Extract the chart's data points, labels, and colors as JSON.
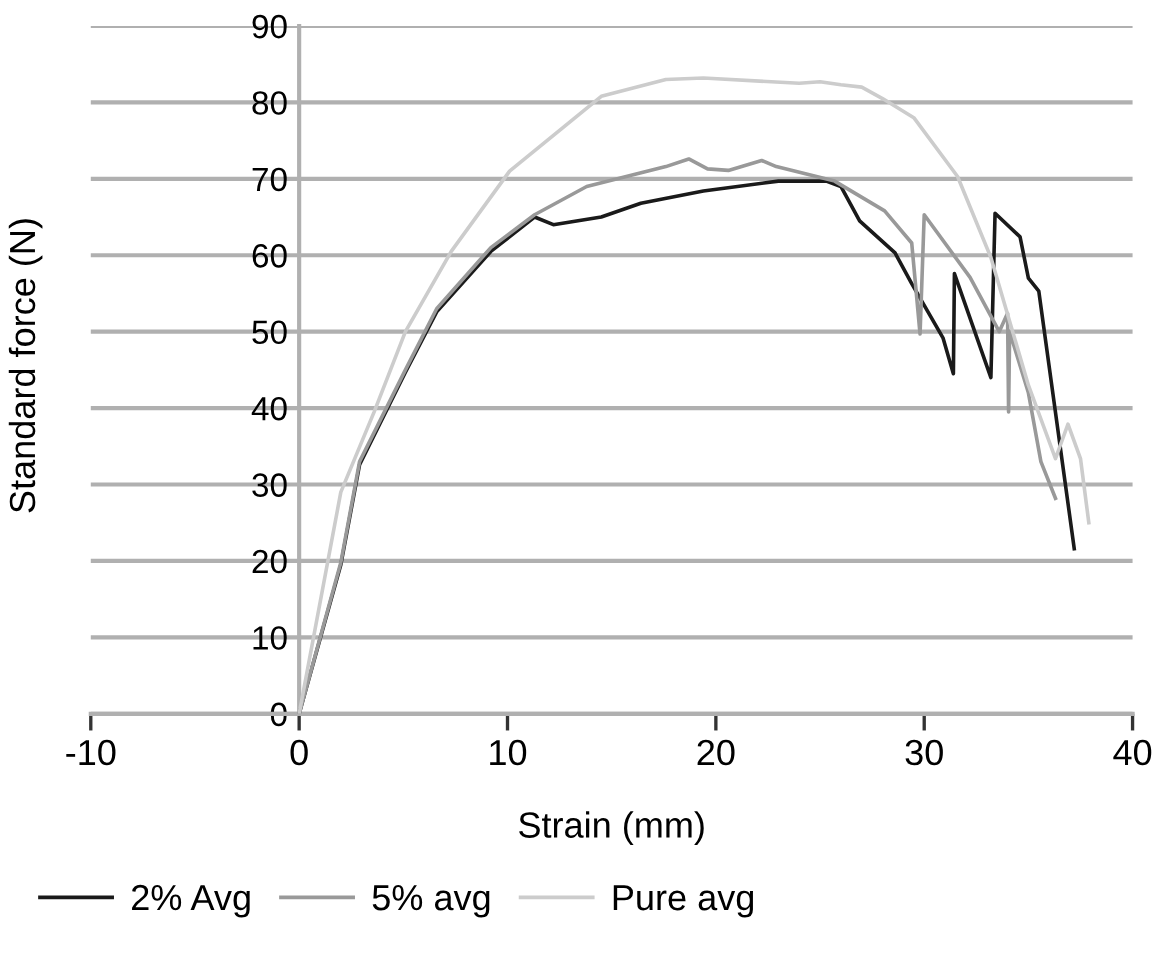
{
  "chart_data": {
    "type": "line",
    "xlabel": "Strain (mm)",
    "ylabel": "Standard force (N)",
    "xlim": [
      -10,
      40
    ],
    "xticks": [
      -10,
      0,
      10,
      20,
      30,
      40
    ],
    "ylim": [
      0,
      90
    ],
    "yticks": [
      0,
      10,
      20,
      30,
      40,
      50,
      60,
      70,
      80,
      90
    ],
    "grid": "y",
    "legend": "bottom",
    "line_style": "solid",
    "series": [
      {
        "name": "2% Avg",
        "color": "#1a1a1a",
        "x": [
          0,
          2.0,
          2.9,
          5.1,
          6.6,
          9.2,
          11.3,
          12.2,
          14.5,
          16.4,
          19.4,
          23,
          25.3,
          26,
          26.9,
          28.6,
          29.4,
          30.9,
          31.4,
          31.45,
          33.2,
          33.4,
          34.6,
          35,
          35.5,
          37.2
        ],
        "values": [
          0,
          19.5,
          32.6,
          44.7,
          52.6,
          60.5,
          65,
          64,
          65,
          66.8,
          68.4,
          69.7,
          69.7,
          69,
          64.5,
          60.3,
          56.3,
          49.2,
          44.5,
          57.6,
          44,
          65.5,
          62.4,
          57,
          55.3,
          21.6
        ]
      },
      {
        "name": "5% avg",
        "color": "#999999",
        "x": [
          0,
          2.0,
          2.9,
          5.1,
          6.6,
          9.2,
          11.3,
          13.8,
          17.6,
          18.7,
          19.6,
          20.6,
          22.2,
          22.9,
          25.7,
          28.1,
          29.4,
          29.8,
          30,
          32.2,
          33.6,
          34,
          34.05,
          34.1,
          35,
          35.6,
          36.3
        ],
        "values": [
          0,
          19.8,
          33,
          45,
          53,
          61,
          65.3,
          69,
          71.6,
          72.6,
          71.3,
          71.1,
          72.4,
          71.6,
          69.7,
          65.8,
          61.6,
          49.7,
          65.3,
          57.1,
          50,
          52.4,
          39.5,
          50,
          42,
          33,
          28.2
        ]
      },
      {
        "name": "Pure avg",
        "color": "#cccccc",
        "x": [
          0,
          2,
          3.6,
          5.1,
          7.3,
          10.1,
          14.5,
          17.6,
          19.4,
          24,
          25,
          26,
          27,
          28,
          29.5,
          31.6,
          33.2,
          35,
          36.3,
          36.9,
          37.5,
          37.9
        ],
        "values": [
          0,
          29,
          39.5,
          50,
          60.5,
          71,
          80.8,
          83,
          83.2,
          82.5,
          82.7,
          82.3,
          82,
          80.5,
          78,
          70.3,
          59.7,
          43,
          33.4,
          37.9,
          33.4,
          25
        ]
      }
    ]
  }
}
